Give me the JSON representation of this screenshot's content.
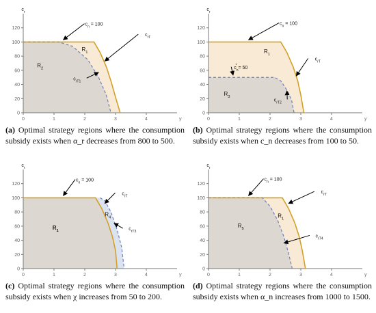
{
  "colors": {
    "dark_region": "#dcd8d1",
    "light_region": "#f8ead4",
    "blue_region": "#dbe3f1",
    "orange_boundary": "#d4a028",
    "blue_dashed": "#6b80c0",
    "axis": "#777777",
    "arrow": "#000000"
  },
  "icons": {
    "arrow": "arrowhead"
  },
  "chart_data": [
    {
      "panel": "a",
      "type": "area",
      "xlabel": "γ",
      "ylabel": "c_r",
      "xlim": [
        0,
        5
      ],
      "ylim": [
        0,
        140
      ],
      "x_ticks": [
        "0",
        "1",
        "2",
        "3",
        "4"
      ],
      "y_ticks": [
        "0",
        "20",
        "40",
        "60",
        "80",
        "100",
        "120"
      ],
      "fill_order": "dark_then_light",
      "orange_curve": [
        [
          0,
          100
        ],
        [
          2.3,
          100
        ],
        [
          2.5,
          85
        ],
        [
          2.7,
          65
        ],
        [
          2.85,
          45
        ],
        [
          3.0,
          22
        ],
        [
          3.15,
          0
        ]
      ],
      "blue_curve": [
        [
          0,
          100
        ],
        [
          1.15,
          100
        ],
        [
          1.6,
          94
        ],
        [
          2.1,
          75
        ],
        [
          2.45,
          50
        ],
        [
          2.7,
          25
        ],
        [
          2.85,
          0
        ]
      ],
      "blue_style": "dashed",
      "labels": [
        {
          "text": "c_n = 100",
          "x": 2.3,
          "y": 123,
          "arrow_to": [
            1.3,
            103
          ]
        },
        {
          "text": "R1",
          "x": 2.0,
          "y": 87
        },
        {
          "text": "R2",
          "x": 0.55,
          "y": 64
        },
        {
          "text": "c_rT1",
          "x": 1.75,
          "y": 46,
          "arrow_to": [
            2.45,
            57
          ]
        },
        {
          "text": "c_rT",
          "x": 4.05,
          "y": 108,
          "arrow_to": [
            2.65,
            73
          ]
        }
      ]
    },
    {
      "panel": "b",
      "type": "area",
      "xlabel": "γ",
      "ylabel": "c_r",
      "xlim": [
        0,
        5
      ],
      "ylim": [
        0,
        140
      ],
      "x_ticks": [
        "0",
        "1",
        "2",
        "3",
        "4"
      ],
      "y_ticks": [
        "0",
        "20",
        "40",
        "60",
        "80",
        "100",
        "120"
      ],
      "fill_order": "light_then_dark",
      "orange_curve": [
        [
          0,
          100
        ],
        [
          2.35,
          100
        ],
        [
          2.55,
          85
        ],
        [
          2.75,
          65
        ],
        [
          2.9,
          45
        ],
        [
          3.0,
          25
        ],
        [
          3.1,
          0
        ]
      ],
      "blue_curve": [
        [
          0,
          50
        ],
        [
          2.15,
          50
        ],
        [
          2.35,
          45
        ],
        [
          2.55,
          32
        ],
        [
          2.7,
          18
        ],
        [
          2.78,
          0
        ]
      ],
      "blue_style": "dashed",
      "labels": [
        {
          "text": "c_n = 100",
          "x": 2.6,
          "y": 124,
          "arrow_to": [
            1.3,
            103
          ]
        },
        {
          "text": "R1",
          "x": 1.9,
          "y": 84
        },
        {
          "text": "c_n* = 50",
          "x": 1.05,
          "y": 62,
          "arrow_to": [
            0.8,
            53
          ]
        },
        {
          "text": "R3",
          "x": 0.6,
          "y": 24
        },
        {
          "text": "c_rT2",
          "x": 2.25,
          "y": 16,
          "arrow_to": [
            2.55,
            31
          ]
        },
        {
          "text": "c_rT",
          "x": 3.55,
          "y": 74,
          "arrow_to": [
            2.85,
            52
          ]
        }
      ]
    },
    {
      "panel": "c",
      "type": "area",
      "xlabel": "γ",
      "ylabel": "c_r",
      "xlim": [
        0,
        5
      ],
      "ylim": [
        0,
        140
      ],
      "x_ticks": [
        "0",
        "1",
        "2",
        "3",
        "4"
      ],
      "y_ticks": [
        "0",
        "20",
        "40",
        "60",
        "80",
        "100",
        "120"
      ],
      "fill_order": "blue_then_dark",
      "orange_curve": [
        [
          0,
          100
        ],
        [
          2.35,
          100
        ],
        [
          2.55,
          85
        ],
        [
          2.75,
          65
        ],
        [
          2.9,
          45
        ],
        [
          3.0,
          25
        ],
        [
          3.05,
          0
        ]
      ],
      "blue_curve": [
        [
          2.5,
          100
        ],
        [
          2.65,
          96
        ],
        [
          2.85,
          80
        ],
        [
          3.05,
          55
        ],
        [
          3.2,
          30
        ],
        [
          3.28,
          0
        ]
      ],
      "blue_style": "dashed",
      "labels": [
        {
          "text": "c_n = 100",
          "x": 2.0,
          "y": 123,
          "arrow_to": [
            1.3,
            103
          ]
        },
        {
          "text": "c_rT",
          "x": 3.3,
          "y": 104,
          "arrow_to": [
            2.65,
            92
          ]
        },
        {
          "text": "R4",
          "x": 2.75,
          "y": 74
        },
        {
          "text": "R1",
          "x": 1.05,
          "y": 55
        },
        {
          "text": "c_rT3",
          "x": 3.55,
          "y": 54,
          "arrow_to": [
            2.95,
            64
          ]
        }
      ]
    },
    {
      "panel": "d",
      "type": "area",
      "xlabel": "γ",
      "ylabel": "c_r",
      "xlim": [
        0,
        5
      ],
      "ylim": [
        0,
        140
      ],
      "x_ticks": [
        "0",
        "1",
        "2",
        "3",
        "4"
      ],
      "y_ticks": [
        "0",
        "20",
        "40",
        "60",
        "80",
        "100",
        "120"
      ],
      "fill_order": "light_then_dark",
      "orange_curve": [
        [
          0,
          100
        ],
        [
          2.4,
          100
        ],
        [
          2.6,
          85
        ],
        [
          2.8,
          65
        ],
        [
          2.95,
          45
        ],
        [
          3.05,
          25
        ],
        [
          3.15,
          0
        ]
      ],
      "blue_curve": [
        [
          0,
          100
        ],
        [
          1.75,
          100
        ],
        [
          2.0,
          88
        ],
        [
          2.25,
          68
        ],
        [
          2.45,
          45
        ],
        [
          2.6,
          22
        ],
        [
          2.72,
          0
        ]
      ],
      "blue_style": "dashed",
      "labels": [
        {
          "text": "c_n = 100",
          "x": 2.1,
          "y": 124,
          "arrow_to": [
            1.3,
            103
          ]
        },
        {
          "text": "c_rT",
          "x": 3.75,
          "y": 106,
          "arrow_to": [
            2.6,
            92
          ]
        },
        {
          "text": "R1",
          "x": 2.35,
          "y": 72
        },
        {
          "text": "R5",
          "x": 1.05,
          "y": 58
        },
        {
          "text": "c_rT4",
          "x": 3.6,
          "y": 44,
          "arrow_to": [
            2.45,
            36
          ]
        }
      ]
    }
  ],
  "captions": {
    "a": {
      "tag": "(a)",
      "text": " Optimal strategy regions where the consumption subsidy exists when α_r decreases from 800 to 500."
    },
    "b": {
      "tag": "(b)",
      "text": " Optimal strategy regions where the consumption subsidy exists when c_n decreases from 100 to 50."
    },
    "c": {
      "tag": "(c)",
      "text": " Optimal strategy regions where the consumption subsidy exists when χ increases from 50 to 200."
    },
    "d": {
      "tag": "(d)",
      "text": " Optimal strategy regions where the consumption subsidy exists when α_n increases from 1000 to 1500."
    }
  }
}
